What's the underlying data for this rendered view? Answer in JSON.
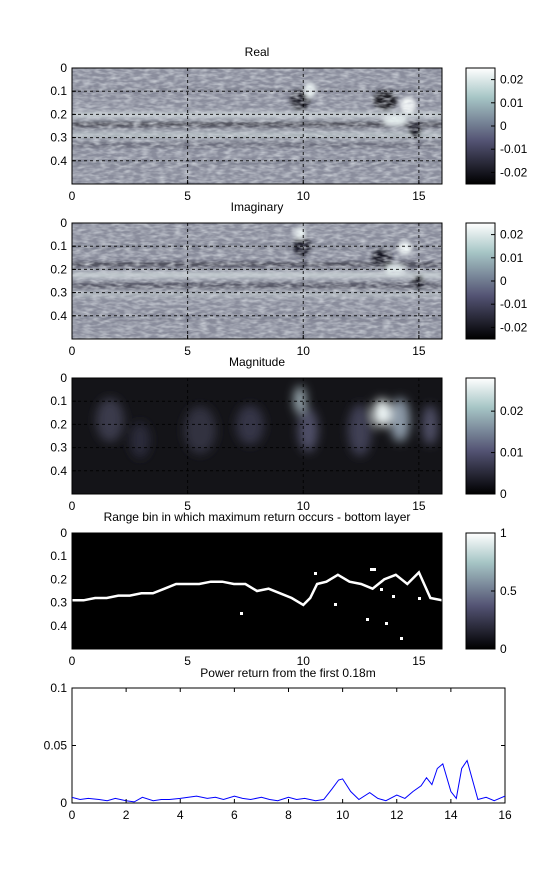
{
  "figure": {
    "panels": [
      {
        "id": "real",
        "title": "Real",
        "yticks": [
          "0",
          "0.1",
          "0.2",
          "0.3",
          "0.4"
        ],
        "xticks": [
          "0",
          "5",
          "10",
          "15"
        ],
        "colorbar": {
          "ticks": [
            "0.02",
            "0.01",
            "0",
            "-0.01",
            "-0.02"
          ]
        }
      },
      {
        "id": "imag",
        "title": "Imaginary",
        "yticks": [
          "0",
          "0.1",
          "0.2",
          "0.3",
          "0.4"
        ],
        "xticks": [
          "0",
          "5",
          "10",
          "15"
        ],
        "colorbar": {
          "ticks": [
            "0.02",
            "0.01",
            "0",
            "-0.01",
            "-0.02"
          ]
        }
      },
      {
        "id": "mag",
        "title": "Magnitude",
        "yticks": [
          "0",
          "0.1",
          "0.2",
          "0.3",
          "0.4"
        ],
        "xticks": [
          "0",
          "5",
          "10",
          "15"
        ],
        "colorbar": {
          "ticks": [
            "0.02",
            "0.01",
            "0"
          ]
        }
      },
      {
        "id": "bin",
        "title": "Range bin in which maximum return occurs - bottom layer",
        "yticks": [
          "0",
          "0.1",
          "0.2",
          "0.3",
          "0.4"
        ],
        "xticks": [
          "0",
          "5",
          "10",
          "15"
        ],
        "colorbar": {
          "ticks": [
            "1",
            "0.5",
            "0"
          ]
        }
      }
    ],
    "line_panel": {
      "title": "Power return from the first 0.18m",
      "yticks": [
        "0",
        "0.05",
        "0.1"
      ],
      "xticks": [
        "0",
        "2",
        "4",
        "6",
        "8",
        "10",
        "12",
        "14",
        "16"
      ]
    }
  },
  "chart_data": [
    {
      "type": "heatmap",
      "title": "Real",
      "xlim": [
        0,
        16
      ],
      "ylim": [
        0,
        0.5
      ],
      "y_reversed": true,
      "grid": true,
      "colormap": "bone",
      "clim": [
        -0.025,
        0.025
      ],
      "features": {
        "bands_depth": [
          0.22,
          0.27,
          0.32
        ],
        "strong_regions_x": [
          10,
          13.5,
          15
        ]
      }
    },
    {
      "type": "heatmap",
      "title": "Imaginary",
      "xlim": [
        0,
        16
      ],
      "ylim": [
        0,
        0.5
      ],
      "y_reversed": true,
      "grid": true,
      "colormap": "bone",
      "clim": [
        -0.025,
        0.025
      ],
      "features": {
        "bands_depth": [
          0.2,
          0.25,
          0.3
        ],
        "strong_regions_x": [
          10,
          13.5,
          15
        ]
      }
    },
    {
      "type": "heatmap",
      "title": "Magnitude",
      "xlim": [
        0,
        16
      ],
      "ylim": [
        0,
        0.5
      ],
      "y_reversed": true,
      "grid": true,
      "colormap": "bone",
      "clim": [
        0,
        0.028
      ],
      "features": {
        "hotspots": [
          {
            "x": 9.9,
            "y": 0.12
          },
          {
            "x": 13.6,
            "y": 0.15
          },
          {
            "x": 14.5,
            "y": 0.13
          }
        ]
      }
    },
    {
      "type": "heatmap",
      "title": "Range bin in which maximum return occurs - bottom layer",
      "xlim": [
        0,
        16
      ],
      "ylim": [
        0,
        0.5
      ],
      "y_reversed": true,
      "grid": false,
      "colormap": "bone",
      "clim": [
        0,
        1
      ],
      "trace": {
        "x": [
          0,
          0.5,
          1,
          1.5,
          2,
          2.5,
          3,
          3.5,
          4,
          4.5,
          5,
          5.5,
          6,
          6.5,
          7,
          7.5,
          8,
          8.5,
          9,
          9.5,
          10,
          10.3,
          10.6,
          11,
          11.5,
          12,
          12.5,
          13,
          13.5,
          14,
          14.5,
          15,
          15.5,
          16
        ],
        "y": [
          0.29,
          0.29,
          0.28,
          0.28,
          0.27,
          0.27,
          0.26,
          0.26,
          0.24,
          0.22,
          0.22,
          0.22,
          0.21,
          0.21,
          0.22,
          0.22,
          0.25,
          0.24,
          0.26,
          0.28,
          0.31,
          0.28,
          0.22,
          0.21,
          0.18,
          0.21,
          0.22,
          0.24,
          0.2,
          0.18,
          0.22,
          0.17,
          0.28,
          0.29
        ]
      }
    },
    {
      "type": "line",
      "title": "Power return from the first 0.18m",
      "xlim": [
        0,
        16
      ],
      "ylim": [
        0,
        0.1
      ],
      "series": [
        {
          "color": "#0000ff",
          "x": [
            0,
            0.3,
            0.6,
            1,
            1.3,
            1.6,
            2,
            2.3,
            2.6,
            3,
            3.3,
            3.6,
            4,
            4.3,
            4.6,
            5,
            5.3,
            5.6,
            6,
            6.3,
            6.6,
            7,
            7.3,
            7.6,
            8,
            8.3,
            8.6,
            9,
            9.3,
            9.6,
            9.85,
            10,
            10.3,
            10.6,
            11,
            11.3,
            11.6,
            12,
            12.3,
            12.6,
            12.9,
            13.1,
            13.3,
            13.5,
            13.7,
            14,
            14.2,
            14.4,
            14.6,
            14.8,
            15,
            15.3,
            15.6,
            16
          ],
          "y": [
            0.005,
            0.003,
            0.004,
            0.003,
            0.002,
            0.004,
            0.002,
            0.001,
            0.005,
            0.002,
            0.003,
            0.003,
            0.004,
            0.005,
            0.006,
            0.004,
            0.005,
            0.003,
            0.006,
            0.004,
            0.003,
            0.005,
            0.003,
            0.002,
            0.005,
            0.003,
            0.004,
            0.002,
            0.003,
            0.012,
            0.02,
            0.021,
            0.01,
            0.003,
            0.009,
            0.004,
            0.002,
            0.007,
            0.004,
            0.01,
            0.015,
            0.022,
            0.016,
            0.03,
            0.034,
            0.01,
            0.004,
            0.03,
            0.037,
            0.02,
            0.003,
            0.005,
            0.002,
            0.006
          ]
        }
      ]
    }
  ]
}
